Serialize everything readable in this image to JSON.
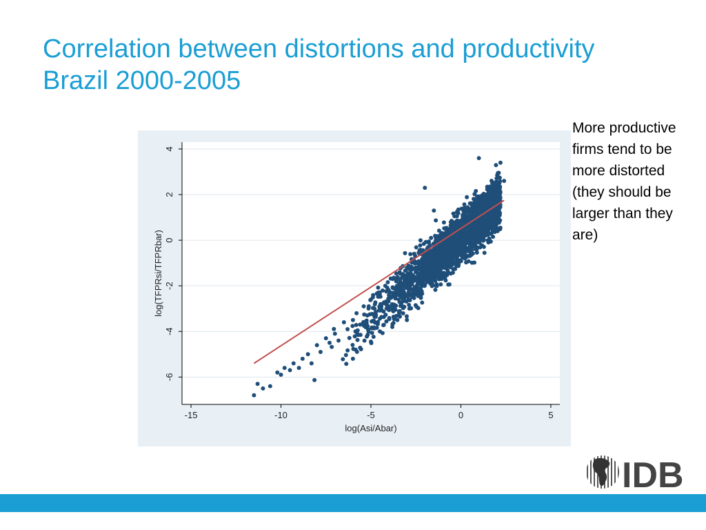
{
  "slide": {
    "title_line1": "Correlation between distortions and productivity",
    "title_line2": "Brazil 2000-2005",
    "note": "More productive firms tend to be more distorted (they should be larger than they are)",
    "logo_text": "IDB"
  },
  "colors": {
    "title": "#1a9ed4",
    "points": "#1f4e79",
    "fit_line": "#c0504d",
    "panel_bg": "#e8eff5",
    "bar": "#1a9ed4"
  },
  "chart_data": {
    "type": "scatter",
    "title": "",
    "xlabel": "log(Asi/Abar)",
    "ylabel": "log(TFPRsi/TFPRbar)",
    "xlim": [
      -15.5,
      5.5
    ],
    "ylim": [
      -7.2,
      4.3
    ],
    "xticks": [
      -15,
      -10,
      -5,
      0,
      5
    ],
    "yticks": [
      -6,
      -4,
      -2,
      0,
      2,
      4
    ],
    "xtick_labels": [
      "-15",
      "-10",
      "-5",
      "0",
      "5"
    ],
    "ytick_labels": [
      "-6",
      "-4",
      "-2",
      "0",
      "2",
      "4"
    ],
    "grid": true,
    "fit_line": {
      "x": [
        -11.5,
        2.4
      ],
      "y": [
        -5.4,
        1.75
      ]
    },
    "points": [
      [
        -11.5,
        -6.8
      ],
      [
        -11.3,
        -6.3
      ],
      [
        -11.0,
        -6.5
      ],
      [
        -10.6,
        -6.4
      ],
      [
        -10.2,
        -5.8
      ],
      [
        -10.0,
        -5.9
      ],
      [
        -9.8,
        -5.6
      ],
      [
        -9.5,
        -5.7
      ],
      [
        -9.3,
        -5.4
      ],
      [
        -9.0,
        -5.6
      ],
      [
        -8.8,
        -5.2
      ],
      [
        -8.5,
        -5.0
      ],
      [
        -8.3,
        -5.4
      ],
      [
        -8.0,
        -4.6
      ],
      [
        -7.8,
        -4.9
      ],
      [
        -7.5,
        -4.3
      ],
      [
        -7.3,
        -4.5
      ],
      [
        -7.0,
        -4.1
      ],
      [
        -6.8,
        -4.4
      ],
      [
        -6.5,
        -3.6
      ],
      [
        -6.3,
        -3.9
      ],
      [
        -6.0,
        -3.5
      ],
      [
        -5.8,
        -3.2
      ],
      [
        -5.6,
        -3.7
      ],
      [
        -5.4,
        -2.9
      ],
      [
        -5.2,
        -3.3
      ],
      [
        -5.0,
        -2.6
      ],
      [
        -4.8,
        -3.0
      ],
      [
        -4.6,
        -2.3
      ],
      [
        -4.4,
        -2.8
      ],
      [
        -4.2,
        -2.0
      ],
      [
        -4.0,
        -2.4
      ],
      [
        -3.8,
        -1.7
      ],
      [
        -3.6,
        -2.2
      ],
      [
        -3.4,
        -1.4
      ],
      [
        -3.2,
        -1.9
      ],
      [
        -3.0,
        -1.2
      ],
      [
        -2.8,
        -1.6
      ],
      [
        -2.6,
        -0.9
      ],
      [
        -2.4,
        -1.3
      ],
      [
        -2.2,
        -0.6
      ],
      [
        -2.0,
        -1.0
      ],
      [
        -1.8,
        -0.4
      ],
      [
        -1.6,
        -0.8
      ],
      [
        -1.4,
        -0.1
      ],
      [
        -1.2,
        -0.5
      ],
      [
        -1.0,
        0.2
      ],
      [
        -0.8,
        -0.3
      ],
      [
        -0.6,
        0.5
      ],
      [
        -0.4,
        0.0
      ],
      [
        -0.2,
        0.8
      ],
      [
        0.0,
        0.3
      ],
      [
        0.2,
        1.1
      ],
      [
        0.4,
        0.5
      ],
      [
        0.6,
        1.4
      ],
      [
        0.8,
        0.7
      ],
      [
        1.0,
        1.7
      ],
      [
        1.2,
        0.9
      ],
      [
        1.4,
        2.0
      ],
      [
        1.6,
        1.1
      ],
      [
        1.8,
        2.4
      ],
      [
        2.0,
        1.3
      ],
      [
        2.2,
        3.4
      ],
      [
        2.4,
        2.6
      ],
      [
        -4.5,
        -4.0
      ],
      [
        -3.0,
        -3.5
      ],
      [
        -6.0,
        -5.2
      ],
      [
        1.0,
        3.6
      ],
      [
        -2.0,
        2.3
      ],
      [
        -1.5,
        1.3
      ]
    ]
  }
}
